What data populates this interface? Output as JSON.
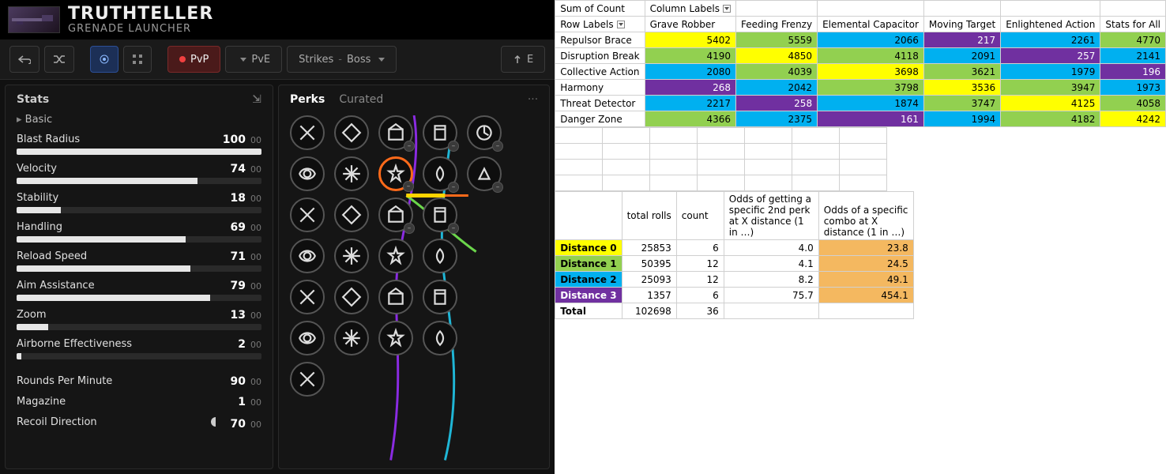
{
  "weapon": {
    "title": "TRUTHTELLER",
    "subtitle": "GRENADE LAUNCHER"
  },
  "toolbar": {
    "pvp": "PvP",
    "pve": "PvE",
    "strikes": "Strikes",
    "boss": "Boss",
    "sep": "-"
  },
  "stats": {
    "panel_title": "Stats",
    "basic_label": "Basic",
    "bars": [
      {
        "label": "Blast Radius",
        "value": 100,
        "extra": "00"
      },
      {
        "label": "Velocity",
        "value": 74,
        "extra": "00"
      },
      {
        "label": "Stability",
        "value": 18,
        "extra": "00"
      },
      {
        "label": "Handling",
        "value": 69,
        "extra": "00"
      },
      {
        "label": "Reload Speed",
        "value": 71,
        "extra": "00"
      },
      {
        "label": "Aim Assistance",
        "value": 79,
        "extra": "00"
      },
      {
        "label": "Zoom",
        "value": 13,
        "extra": "00"
      },
      {
        "label": "Airborne Effectiveness",
        "value": 2,
        "extra": "00"
      }
    ],
    "plain": [
      {
        "label": "Rounds Per Minute",
        "value": 90,
        "extra": "00"
      },
      {
        "label": "Magazine",
        "value": 1,
        "extra": "00"
      },
      {
        "label": "Recoil Direction",
        "value": 70,
        "extra": "00"
      }
    ]
  },
  "perks": {
    "tab_perks": "Perks",
    "tab_curated": "Curated",
    "more": "···"
  },
  "colors": {
    "yellow": "#FFFF00",
    "green": "#92D050",
    "blue": "#00B0F0",
    "purple": "#7030A0",
    "orange": "#F4B860"
  },
  "pivot": {
    "corner_sum": "Sum of Count",
    "corner_col": "Column Labels",
    "corner_row": "Row Labels",
    "cols": [
      "Grave Robber",
      "Feeding Frenzy",
      "Elemental Capacitor",
      "Moving Target",
      "Enlightened Action",
      "Stats for All"
    ],
    "rows": [
      {
        "label": "Repulsor Brace",
        "cells": [
          {
            "v": 5402,
            "c": "yellow"
          },
          {
            "v": 5559,
            "c": "green"
          },
          {
            "v": 2066,
            "c": "blue"
          },
          {
            "v": 217,
            "c": "purple"
          },
          {
            "v": 2261,
            "c": "blue"
          },
          {
            "v": 4770,
            "c": "green"
          }
        ]
      },
      {
        "label": "Disruption Break",
        "cells": [
          {
            "v": 4190,
            "c": "green"
          },
          {
            "v": 4850,
            "c": "yellow"
          },
          {
            "v": 4118,
            "c": "green"
          },
          {
            "v": 2091,
            "c": "blue"
          },
          {
            "v": 257,
            "c": "purple"
          },
          {
            "v": 2141,
            "c": "blue"
          }
        ]
      },
      {
        "label": "Collective Action",
        "cells": [
          {
            "v": 2080,
            "c": "blue"
          },
          {
            "v": 4039,
            "c": "green"
          },
          {
            "v": 3698,
            "c": "yellow"
          },
          {
            "v": 3621,
            "c": "green"
          },
          {
            "v": 1979,
            "c": "blue"
          },
          {
            "v": 196,
            "c": "purple"
          }
        ]
      },
      {
        "label": "Harmony",
        "cells": [
          {
            "v": 268,
            "c": "purple"
          },
          {
            "v": 2042,
            "c": "blue"
          },
          {
            "v": 3798,
            "c": "green"
          },
          {
            "v": 3536,
            "c": "yellow"
          },
          {
            "v": 3947,
            "c": "green"
          },
          {
            "v": 1973,
            "c": "blue"
          }
        ]
      },
      {
        "label": "Threat Detector",
        "cells": [
          {
            "v": 2217,
            "c": "blue"
          },
          {
            "v": 258,
            "c": "purple"
          },
          {
            "v": 1874,
            "c": "blue"
          },
          {
            "v": 3747,
            "c": "green"
          },
          {
            "v": 4125,
            "c": "yellow"
          },
          {
            "v": 4058,
            "c": "green"
          }
        ]
      },
      {
        "label": "Danger Zone",
        "cells": [
          {
            "v": 4366,
            "c": "green"
          },
          {
            "v": 2375,
            "c": "blue"
          },
          {
            "v": 161,
            "c": "purple"
          },
          {
            "v": 1994,
            "c": "blue"
          },
          {
            "v": 4182,
            "c": "green"
          },
          {
            "v": 4242,
            "c": "yellow"
          }
        ]
      }
    ]
  },
  "odds": {
    "headers": [
      "",
      "total rolls",
      "count",
      "Odds of getting a specific 2nd perk at X distance (1 in …)",
      "Odds of a specific combo at X distance (1 in …)"
    ],
    "rows": [
      {
        "label": "Distance 0",
        "c": "yellow",
        "total": 25853,
        "count": 6,
        "perk": "4.0",
        "combo": "23.8"
      },
      {
        "label": "Distance 1",
        "c": "green",
        "total": 50395,
        "count": 12,
        "perk": "4.1",
        "combo": "24.5"
      },
      {
        "label": "Distance 2",
        "c": "blue",
        "total": 25093,
        "count": 12,
        "perk": "8.2",
        "combo": "49.1"
      },
      {
        "label": "Distance 3",
        "c": "purple",
        "total": 1357,
        "count": 6,
        "perk": "75.7",
        "combo": "454.1"
      }
    ],
    "total_label": "Total",
    "total_rolls": 102698,
    "total_count": 36
  }
}
